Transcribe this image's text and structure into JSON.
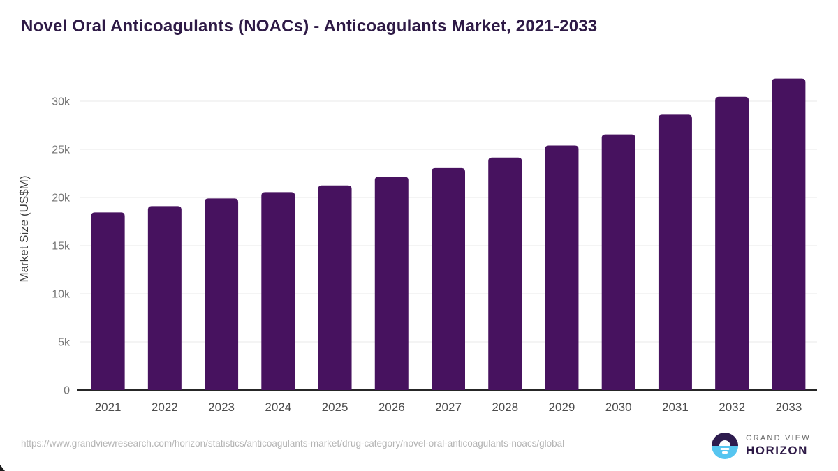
{
  "title": "Novel Oral Anticoagulants (NOACs) - Anticoagulants Market, 2021-2033",
  "footer": {
    "source_url": "https://www.grandviewresearch.com/horizon/statistics/anticoagulants-market/drug-category/novel-oral-anticoagulants-noacs/global",
    "logo": {
      "line1": "GRAND VIEW",
      "line2": "HORIZON"
    }
  },
  "colors": {
    "bar": "#47125F",
    "title": "#2e1a46",
    "gridline": "#e8e8e8",
    "axis_line": "#262626",
    "ytick_label": "#757575",
    "xtick_label": "#4d4d4d",
    "axis_title": "#3f3f3f",
    "url_text": "#b4b4b4",
    "logo_dark": "#2d1b4e",
    "logo_blue": "#56c5f0",
    "logo_gray_text": "#6a6a6a",
    "logo_purple_text": "#2e1a47"
  },
  "chart_data": {
    "type": "bar",
    "title": "Novel Oral Anticoagulants (NOACs) - Anticoagulants Market, 2021-2033",
    "xlabel": "",
    "ylabel": "Market Size (US$M)",
    "categories": [
      "2021",
      "2022",
      "2023",
      "2024",
      "2025",
      "2026",
      "2027",
      "2028",
      "2029",
      "2030",
      "2031",
      "2032",
      "2033"
    ],
    "values": [
      18450,
      19100,
      19900,
      20550,
      21250,
      22150,
      23050,
      24150,
      25400,
      26550,
      28600,
      30450,
      32350
    ],
    "ylim": [
      0,
      33250
    ],
    "yticks": [
      0,
      5000,
      10000,
      15000,
      20000,
      25000,
      30000
    ],
    "ytick_labels": [
      "0",
      "5k",
      "10k",
      "15k",
      "20k",
      "25k",
      "30k"
    ],
    "grid": true,
    "legend": false,
    "bar_color": "#47125F"
  }
}
